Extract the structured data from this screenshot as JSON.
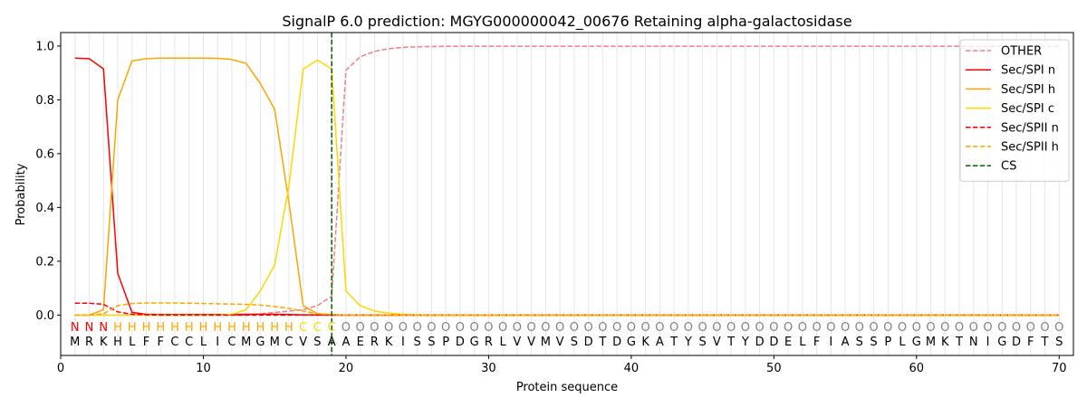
{
  "chart_data": {
    "type": "line",
    "title": "SignalP 6.0 prediction: MGYG000000042_00676 Retaining alpha-galactosidase",
    "xlabel": "Protein sequence",
    "ylabel": "Probability",
    "xlim": [
      0,
      71
    ],
    "ylim": [
      -0.15,
      1.05
    ],
    "x_ticks": [
      0,
      10,
      20,
      30,
      40,
      50,
      60,
      70
    ],
    "y_ticks": [
      0.0,
      0.2,
      0.4,
      0.6,
      0.8,
      1.0
    ],
    "y_tick_labels": [
      "0.0",
      "0.2",
      "0.4",
      "0.6",
      "0.8",
      "1.0"
    ],
    "grid": "vertical lines at each residue",
    "legend_position": "top-right",
    "x": [
      1,
      2,
      3,
      4,
      5,
      6,
      7,
      8,
      9,
      10,
      11,
      12,
      13,
      14,
      15,
      16,
      17,
      18,
      19,
      20,
      21,
      22,
      23,
      24,
      25,
      26,
      27,
      28,
      29,
      30,
      31,
      32,
      33,
      34,
      35,
      36,
      37,
      38,
      39,
      40,
      41,
      42,
      43,
      44,
      45,
      46,
      47,
      48,
      49,
      50,
      51,
      52,
      53,
      54,
      55,
      56,
      57,
      58,
      59,
      60,
      61,
      62,
      63,
      64,
      65,
      66,
      67,
      68,
      69,
      70
    ],
    "sequence": [
      "M",
      "R",
      "K",
      "H",
      "L",
      "F",
      "F",
      "C",
      "C",
      "L",
      "I",
      "C",
      "M",
      "G",
      "M",
      "C",
      "V",
      "S",
      "A",
      "A",
      "E",
      "R",
      "K",
      "I",
      "S",
      "S",
      "P",
      "D",
      "G",
      "R",
      "L",
      "V",
      "V",
      "M",
      "V",
      "S",
      "D",
      "T",
      "D",
      "G",
      "K",
      "A",
      "T",
      "Y",
      "S",
      "V",
      "T",
      "Y",
      "D",
      "D",
      "E",
      "L",
      "F",
      "I",
      "A",
      "S",
      "S",
      "P",
      "L",
      "G",
      "M",
      "K",
      "T",
      "N",
      "I",
      "G",
      "D",
      "F",
      "T",
      "S"
    ],
    "region_labels": [
      "N",
      "N",
      "N",
      "H",
      "H",
      "H",
      "H",
      "H",
      "H",
      "H",
      "H",
      "H",
      "H",
      "H",
      "H",
      "H",
      "C",
      "C",
      "C",
      "O",
      "O",
      "O",
      "O",
      "O",
      "O",
      "O",
      "O",
      "O",
      "O",
      "O",
      "O",
      "O",
      "O",
      "O",
      "O",
      "O",
      "O",
      "O",
      "O",
      "O",
      "O",
      "O",
      "O",
      "O",
      "O",
      "O",
      "O",
      "O",
      "O",
      "O",
      "O",
      "O",
      "O",
      "O",
      "O",
      "O",
      "O",
      "O",
      "O",
      "O",
      "O",
      "O",
      "O",
      "O",
      "O",
      "O",
      "O",
      "O",
      "O",
      "O"
    ],
    "region_colors": {
      "N": "#ff0000",
      "H": "#ffa500",
      "C": "#ffd700",
      "O": "#808080"
    },
    "cleavage_site": 19,
    "series": [
      {
        "name": "OTHER",
        "color": "#f08080",
        "dash": "dashed",
        "values": [
          0.0,
          0.0,
          0.0,
          0.0,
          0.0,
          0.0,
          0.0,
          0.0,
          0.0,
          0.0,
          0.0,
          0.0,
          0.0,
          0.005,
          0.01,
          0.015,
          0.02,
          0.035,
          0.07,
          0.91,
          0.96,
          0.98,
          0.99,
          0.995,
          0.997,
          0.998,
          0.999,
          0.999,
          0.999,
          0.999,
          0.999,
          0.999,
          0.999,
          0.999,
          0.999,
          0.999,
          0.999,
          0.999,
          0.999,
          0.999,
          0.999,
          0.999,
          0.999,
          0.999,
          0.999,
          0.999,
          0.999,
          0.999,
          0.999,
          0.999,
          0.999,
          0.999,
          0.999,
          0.999,
          0.999,
          0.999,
          0.999,
          0.999,
          0.999,
          0.999,
          0.999,
          0.999,
          0.999,
          0.999,
          0.999,
          0.999,
          0.999,
          0.999,
          0.999,
          0.999
        ]
      },
      {
        "name": "Sec/SPI n",
        "color": "#ff0000",
        "dash": "solid",
        "values": [
          0.955,
          0.953,
          0.915,
          0.155,
          0.01,
          0.003,
          0.002,
          0.002,
          0.002,
          0.002,
          0.002,
          0.002,
          0.003,
          0.003,
          0.003,
          0.002,
          0.001,
          0.001,
          0.0,
          0.0,
          0.0,
          0.0,
          0.0,
          0.0,
          0.0,
          0.0,
          0.0,
          0.0,
          0.0,
          0.0,
          0.0,
          0.0,
          0.0,
          0.0,
          0.0,
          0.0,
          0.0,
          0.0,
          0.0,
          0.0,
          0.0,
          0.0,
          0.0,
          0.0,
          0.0,
          0.0,
          0.0,
          0.0,
          0.0,
          0.0,
          0.0,
          0.0,
          0.0,
          0.0,
          0.0,
          0.0,
          0.0,
          0.0,
          0.0,
          0.0,
          0.0,
          0.0,
          0.0,
          0.0,
          0.0,
          0.0,
          0.0,
          0.0,
          0.0,
          0.0
        ]
      },
      {
        "name": "Sec/SPI h",
        "color": "#ffa500",
        "dash": "solid",
        "values": [
          0.0,
          0.0,
          0.02,
          0.8,
          0.945,
          0.953,
          0.955,
          0.955,
          0.955,
          0.955,
          0.954,
          0.95,
          0.935,
          0.86,
          0.765,
          0.42,
          0.035,
          0.005,
          0.002,
          0.0,
          0.0,
          0.0,
          0.0,
          0.0,
          0.0,
          0.0,
          0.0,
          0.0,
          0.0,
          0.0,
          0.0,
          0.0,
          0.0,
          0.0,
          0.0,
          0.0,
          0.0,
          0.0,
          0.0,
          0.0,
          0.0,
          0.0,
          0.0,
          0.0,
          0.0,
          0.0,
          0.0,
          0.0,
          0.0,
          0.0,
          0.0,
          0.0,
          0.0,
          0.0,
          0.0,
          0.0,
          0.0,
          0.0,
          0.0,
          0.0,
          0.0,
          0.0,
          0.0,
          0.0,
          0.0,
          0.0,
          0.0,
          0.0,
          0.0,
          0.0
        ]
      },
      {
        "name": "Sec/SPI c",
        "color": "#ffd700",
        "dash": "solid",
        "values": [
          0.0,
          0.0,
          0.0,
          0.0,
          0.0,
          0.0,
          0.0,
          0.0,
          0.0,
          0.0,
          0.0,
          0.003,
          0.02,
          0.09,
          0.185,
          0.48,
          0.915,
          0.948,
          0.915,
          0.09,
          0.035,
          0.015,
          0.007,
          0.003,
          0.001,
          0.0,
          0.0,
          0.0,
          0.0,
          0.0,
          0.0,
          0.0,
          0.0,
          0.0,
          0.0,
          0.0,
          0.0,
          0.0,
          0.0,
          0.0,
          0.0,
          0.0,
          0.0,
          0.0,
          0.0,
          0.0,
          0.0,
          0.0,
          0.0,
          0.0,
          0.0,
          0.0,
          0.0,
          0.0,
          0.0,
          0.0,
          0.0,
          0.0,
          0.0,
          0.0,
          0.0,
          0.0,
          0.0,
          0.0,
          0.0,
          0.0,
          0.0,
          0.0,
          0.0,
          0.0
        ]
      },
      {
        "name": "Sec/SPII n",
        "color": "#ff0000",
        "dash": "dashed",
        "values": [
          0.044,
          0.044,
          0.04,
          0.012,
          0.003,
          0.001,
          0.0,
          0.0,
          0.0,
          0.0,
          0.0,
          0.0,
          0.0,
          0.0,
          0.0,
          0.0,
          0.0,
          0.0,
          0.0,
          0.0,
          0.0,
          0.0,
          0.0,
          0.0,
          0.0,
          0.0,
          0.0,
          0.0,
          0.0,
          0.0,
          0.0,
          0.0,
          0.0,
          0.0,
          0.0,
          0.0,
          0.0,
          0.0,
          0.0,
          0.0,
          0.0,
          0.0,
          0.0,
          0.0,
          0.0,
          0.0,
          0.0,
          0.0,
          0.0,
          0.0,
          0.0,
          0.0,
          0.0,
          0.0,
          0.0,
          0.0,
          0.0,
          0.0,
          0.0,
          0.0,
          0.0,
          0.0,
          0.0,
          0.0,
          0.0,
          0.0,
          0.0,
          0.0,
          0.0,
          0.0
        ]
      },
      {
        "name": "Sec/SPII h",
        "color": "#ffa500",
        "dash": "dashed",
        "values": [
          0.0,
          0.0,
          0.005,
          0.035,
          0.043,
          0.045,
          0.045,
          0.045,
          0.044,
          0.043,
          0.042,
          0.041,
          0.04,
          0.037,
          0.032,
          0.025,
          0.015,
          0.005,
          0.002,
          0.0,
          0.0,
          0.0,
          0.0,
          0.0,
          0.0,
          0.0,
          0.0,
          0.0,
          0.0,
          0.0,
          0.0,
          0.0,
          0.0,
          0.0,
          0.0,
          0.0,
          0.0,
          0.0,
          0.0,
          0.0,
          0.0,
          0.0,
          0.0,
          0.0,
          0.0,
          0.0,
          0.0,
          0.0,
          0.0,
          0.0,
          0.0,
          0.0,
          0.0,
          0.0,
          0.0,
          0.0,
          0.0,
          0.0,
          0.0,
          0.0,
          0.0,
          0.0,
          0.0,
          0.0,
          0.0,
          0.0,
          0.0,
          0.0,
          0.0,
          0.0
        ]
      }
    ],
    "legend": [
      {
        "label": "OTHER",
        "color": "#f08080",
        "dash": "dashed"
      },
      {
        "label": "Sec/SPI n",
        "color": "#ff0000",
        "dash": "solid"
      },
      {
        "label": "Sec/SPI h",
        "color": "#ffa500",
        "dash": "solid"
      },
      {
        "label": "Sec/SPI c",
        "color": "#ffd700",
        "dash": "solid"
      },
      {
        "label": "Sec/SPII n",
        "color": "#ff0000",
        "dash": "dashed"
      },
      {
        "label": "Sec/SPII h",
        "color": "#ffa500",
        "dash": "dashed"
      },
      {
        "label": "CS",
        "color": "#006400",
        "dash": "dashed"
      }
    ]
  }
}
